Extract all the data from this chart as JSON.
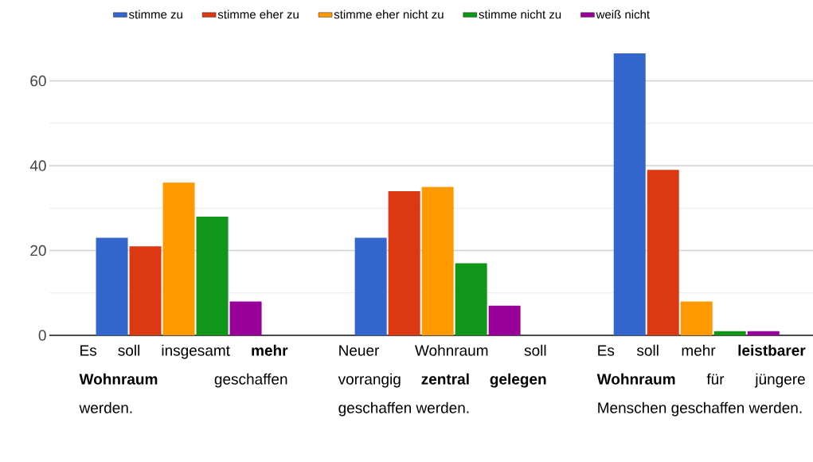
{
  "chart_data": {
    "type": "bar",
    "categories": [
      "Es soll insgesamt **mehr Wohnraum** geschaffen werden.",
      "Neuer Wohnraum soll vorrangig **zentral gelegen** geschaffen werden.",
      "Es soll mehr **leistbarer Wohnraum** für jüngere Menschen geschaffen werden."
    ],
    "series": [
      {
        "name": "stimme zu",
        "color": "#3366cc",
        "values": [
          23,
          23,
          66.5
        ]
      },
      {
        "name": "stimme eher zu",
        "color": "#dc3912",
        "values": [
          21,
          34,
          39
        ]
      },
      {
        "name": "stimme eher nicht zu",
        "color": "#ff9900",
        "values": [
          36,
          35,
          8
        ]
      },
      {
        "name": "stimme nicht zu",
        "color": "#109618",
        "values": [
          28,
          17,
          1
        ]
      },
      {
        "name": "weiß nicht",
        "color": "#990099",
        "values": [
          8,
          7,
          1
        ]
      }
    ],
    "ylim": [
      0,
      66.5
    ],
    "yticks": [
      0,
      20,
      40,
      60
    ],
    "grid": "y",
    "legend": "top"
  }
}
